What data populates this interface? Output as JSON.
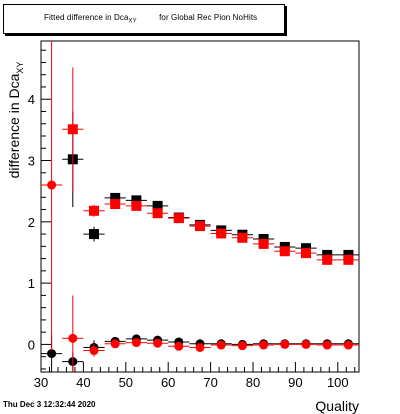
{
  "title": {
    "prefix": "Fitted difference in Dca",
    "subscript": "XY",
    "suffix": " for Global Rec Pion NoHits"
  },
  "date_label": "Thu Dec  3 12:32:44 2020",
  "colors": {
    "series_black": "#000000",
    "series_red": "#ff0000",
    "frame": "#000000",
    "background": "#ffffff"
  },
  "chart_data": {
    "type": "scatter",
    "title": "Fitted difference in Dca_XY for Global Rec Pion NoHits",
    "xlabel": "Quality",
    "ylabel_main": "difference in Dca",
    "ylabel_sub": "XY",
    "xlim": [
      30,
      105
    ],
    "ylim": [
      -0.45,
      4.95
    ],
    "xticks": [
      30,
      40,
      50,
      60,
      70,
      80,
      90,
      100
    ],
    "yticks": [
      0,
      1,
      2,
      3,
      4
    ],
    "x_err": 2.5,
    "grid": false,
    "legend": "none",
    "series": [
      {
        "marker": "square",
        "color": "#000000",
        "points": [
          {
            "x": 37.5,
            "y": 3.02,
            "err": 0.78
          },
          {
            "x": 42.5,
            "y": 1.8,
            "err": 0.12
          },
          {
            "x": 47.5,
            "y": 2.39,
            "err": 0.05
          },
          {
            "x": 52.5,
            "y": 2.35,
            "err": 0.04
          },
          {
            "x": 57.5,
            "y": 2.26,
            "err": 0.04
          },
          {
            "x": 62.5,
            "y": 2.07,
            "err": 0.04
          },
          {
            "x": 67.5,
            "y": 1.95,
            "err": 0.04
          },
          {
            "x": 72.5,
            "y": 1.86,
            "err": 0.04
          },
          {
            "x": 77.5,
            "y": 1.79,
            "err": 0.04
          },
          {
            "x": 82.5,
            "y": 1.72,
            "err": 0.04
          },
          {
            "x": 87.5,
            "y": 1.59,
            "err": 0.04
          },
          {
            "x": 92.5,
            "y": 1.57,
            "err": 0.04
          },
          {
            "x": 97.5,
            "y": 1.46,
            "err": 0.04
          },
          {
            "x": 102.5,
            "y": 1.46,
            "err": 0.04
          }
        ]
      },
      {
        "marker": "square",
        "color": "#ff0000",
        "points": [
          {
            "x": 37.5,
            "y": 3.51,
            "err": 1.01
          },
          {
            "x": 42.5,
            "y": 2.18,
            "err": 0.1
          },
          {
            "x": 47.5,
            "y": 2.29,
            "err": 0.05
          },
          {
            "x": 52.5,
            "y": 2.26,
            "err": 0.04
          },
          {
            "x": 57.5,
            "y": 2.14,
            "err": 0.04
          },
          {
            "x": 62.5,
            "y": 2.06,
            "err": 0.04
          },
          {
            "x": 67.5,
            "y": 1.93,
            "err": 0.04
          },
          {
            "x": 72.5,
            "y": 1.81,
            "err": 0.04
          },
          {
            "x": 77.5,
            "y": 1.74,
            "err": 0.04
          },
          {
            "x": 82.5,
            "y": 1.64,
            "err": 0.04
          },
          {
            "x": 87.5,
            "y": 1.52,
            "err": 0.04
          },
          {
            "x": 92.5,
            "y": 1.49,
            "err": 0.04
          },
          {
            "x": 97.5,
            "y": 1.38,
            "err": 0.04
          },
          {
            "x": 102.5,
            "y": 1.38,
            "err": 0.04
          }
        ]
      },
      {
        "marker": "circle",
        "color": "#000000",
        "points": [
          {
            "x": 32.5,
            "y": -0.15,
            "err": 0.3
          },
          {
            "x": 37.5,
            "y": -0.28,
            "err": 0.15
          },
          {
            "x": 42.5,
            "y": -0.05,
            "err": 0.12
          },
          {
            "x": 47.5,
            "y": 0.05,
            "err": 0.04
          },
          {
            "x": 52.5,
            "y": 0.09,
            "err": 0.03
          },
          {
            "x": 57.5,
            "y": 0.07,
            "err": 0.03
          },
          {
            "x": 62.5,
            "y": 0.04,
            "err": 0.03
          },
          {
            "x": 67.5,
            "y": 0.01,
            "err": 0.03
          },
          {
            "x": 72.5,
            "y": 0.01,
            "err": 0.03
          },
          {
            "x": 77.5,
            "y": 0.0,
            "err": 0.03
          },
          {
            "x": 82.5,
            "y": 0.01,
            "err": 0.03
          },
          {
            "x": 87.5,
            "y": 0.01,
            "err": 0.03
          },
          {
            "x": 92.5,
            "y": 0.01,
            "err": 0.03
          },
          {
            "x": 97.5,
            "y": 0.01,
            "err": 0.03
          },
          {
            "x": 102.5,
            "y": 0.01,
            "err": 0.03
          }
        ]
      },
      {
        "marker": "circle",
        "color": "#ff0000",
        "points": [
          {
            "x": 32.5,
            "y": 2.6,
            "err": 2.7
          },
          {
            "x": 37.5,
            "y": 0.1,
            "err": 0.7
          },
          {
            "x": 42.5,
            "y": -0.1,
            "err": 0.1
          },
          {
            "x": 47.5,
            "y": 0.01,
            "err": 0.04
          },
          {
            "x": 52.5,
            "y": 0.03,
            "err": 0.03
          },
          {
            "x": 57.5,
            "y": 0.02,
            "err": 0.03
          },
          {
            "x": 62.5,
            "y": -0.03,
            "err": 0.03
          },
          {
            "x": 67.5,
            "y": -0.05,
            "err": 0.03
          },
          {
            "x": 72.5,
            "y": -0.01,
            "err": 0.03
          },
          {
            "x": 77.5,
            "y": -0.02,
            "err": 0.03
          },
          {
            "x": 82.5,
            "y": -0.01,
            "err": 0.03
          },
          {
            "x": 87.5,
            "y": 0.0,
            "err": 0.03
          },
          {
            "x": 92.5,
            "y": 0.0,
            "err": 0.03
          },
          {
            "x": 97.5,
            "y": -0.01,
            "err": 0.03
          },
          {
            "x": 102.5,
            "y": -0.01,
            "err": 0.03
          }
        ]
      }
    ]
  }
}
